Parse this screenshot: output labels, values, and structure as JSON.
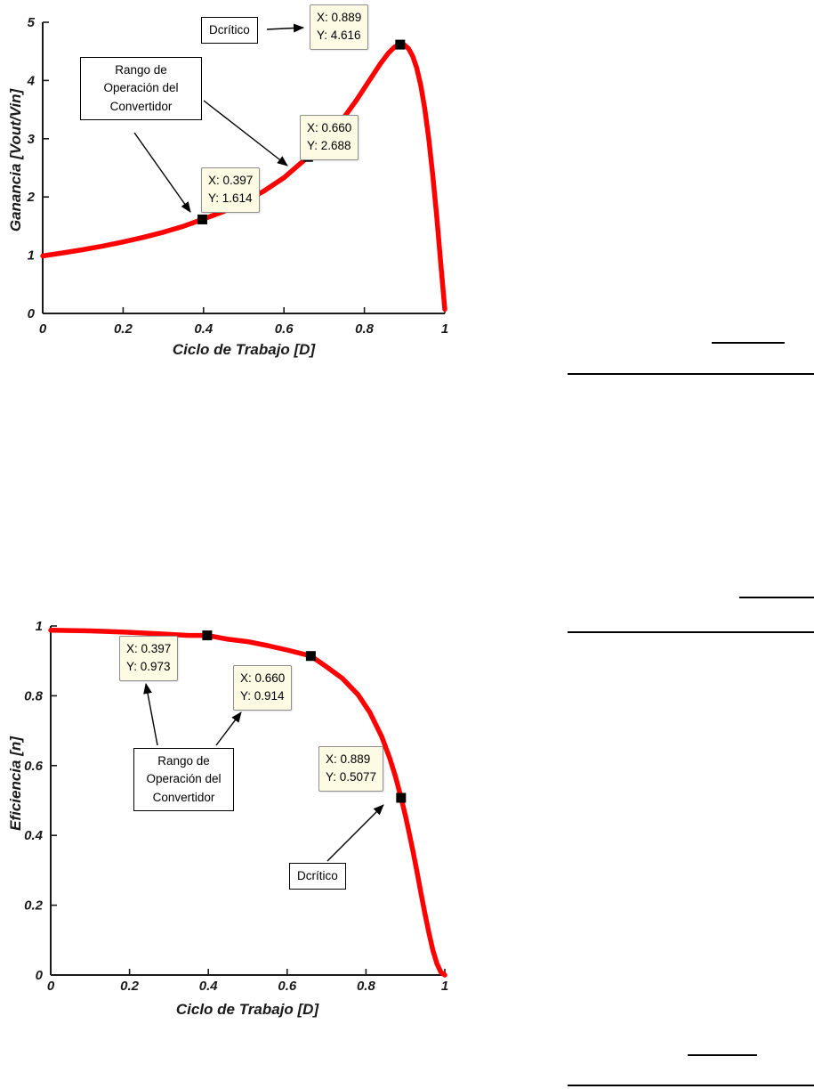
{
  "chart_data": [
    {
      "type": "line",
      "title": "",
      "xlabel": "Ciclo de Trabajo [D]",
      "ylabel": "Ganancia [Vout/Vin]",
      "xlim": [
        0,
        1
      ],
      "ylim": [
        0,
        5
      ],
      "grid": false,
      "line_color": "#ff0000",
      "x_ticks": [
        0,
        0.2,
        0.4,
        0.6,
        0.8,
        1
      ],
      "x_tick_labels": [
        "0",
        "0.2",
        "0.4",
        "0.6",
        "0.8",
        "1"
      ],
      "y_ticks": [
        0,
        1,
        2,
        3,
        4,
        5
      ],
      "y_tick_labels": [
        "0",
        "1",
        "2",
        "3",
        "4",
        "5"
      ],
      "x": [
        0,
        0.05,
        0.1,
        0.15,
        0.2,
        0.25,
        0.3,
        0.35,
        0.397,
        0.45,
        0.5,
        0.55,
        0.6,
        0.66,
        0.7,
        0.74,
        0.78,
        0.81,
        0.84,
        0.86,
        0.875,
        0.889,
        0.9,
        0.91,
        0.92,
        0.93,
        0.94,
        0.95,
        0.96,
        0.97,
        0.98,
        0.99,
        1
      ],
      "y": [
        0.988,
        1.039,
        1.095,
        1.158,
        1.228,
        1.306,
        1.395,
        1.497,
        1.614,
        1.751,
        1.911,
        2.101,
        2.33,
        2.688,
        2.95,
        3.279,
        3.661,
        3.975,
        4.29,
        4.473,
        4.575,
        4.616,
        4.608,
        4.546,
        4.42,
        4.217,
        3.922,
        3.521,
        3.008,
        2.381,
        1.653,
        0.848,
        0.07
      ],
      "markers": [
        {
          "x": 0.397,
          "y": 1.614
        },
        {
          "x": 0.66,
          "y": 2.688
        },
        {
          "x": 0.889,
          "y": 4.616
        }
      ],
      "datatips": [
        {
          "x_label": "X: 0.397",
          "y_label": "Y: 1.614"
        },
        {
          "x_label": "X: 0.660",
          "y_label": "Y: 2.688"
        },
        {
          "x_label": "X: 0.889",
          "y_label": "Y: 4.616"
        }
      ],
      "annotations": {
        "dcritico_label": "Dcrítico",
        "range_label": "Rango de\nOperación del\nConvertidor"
      }
    },
    {
      "type": "line",
      "title": "",
      "xlabel": "Ciclo de Trabajo [D]",
      "ylabel": "Eficiencia [n]",
      "xlim": [
        0,
        1
      ],
      "ylim": [
        0,
        1
      ],
      "grid": false,
      "line_color": "#ff0000",
      "x_ticks": [
        0,
        0.2,
        0.4,
        0.6,
        0.8,
        1
      ],
      "x_tick_labels": [
        "0",
        "0.2",
        "0.4",
        "0.6",
        "0.8",
        "1"
      ],
      "y_ticks": [
        0,
        0.2,
        0.4,
        0.6,
        0.8,
        1
      ],
      "y_tick_labels": [
        "0",
        "0.2",
        "0.4",
        "0.6",
        "0.8",
        "1"
      ],
      "x": [
        0,
        0.05,
        0.1,
        0.15,
        0.2,
        0.25,
        0.3,
        0.35,
        0.397,
        0.45,
        0.5,
        0.55,
        0.6,
        0.66,
        0.7,
        0.74,
        0.78,
        0.81,
        0.84,
        0.86,
        0.875,
        0.889,
        0.9,
        0.91,
        0.92,
        0.93,
        0.94,
        0.95,
        0.96,
        0.97,
        0.98,
        0.99,
        1
      ],
      "y": [
        0.988,
        0.987,
        0.986,
        0.984,
        0.982,
        0.979,
        0.976,
        0.973,
        0.973,
        0.962,
        0.955,
        0.944,
        0.931,
        0.914,
        0.883,
        0.85,
        0.803,
        0.752,
        0.683,
        0.622,
        0.568,
        0.508,
        0.457,
        0.405,
        0.35,
        0.292,
        0.232,
        0.174,
        0.119,
        0.07,
        0.033,
        0.008,
        0
      ],
      "markers": [
        {
          "x": 0.397,
          "y": 0.973
        },
        {
          "x": 0.66,
          "y": 0.914
        },
        {
          "x": 0.889,
          "y": 0.5077
        }
      ],
      "datatips": [
        {
          "x_label": "X: 0.397",
          "y_label": "Y: 0.973"
        },
        {
          "x_label": "X: 0.660",
          "y_label": "Y: 0.914"
        },
        {
          "x_label": "X: 0.889",
          "y_label": "Y: 0.5077"
        }
      ],
      "annotations": {
        "dcritico_label": "Dcrítico",
        "range_label": "Rango de\nOperación del\nConvertidor"
      }
    }
  ]
}
